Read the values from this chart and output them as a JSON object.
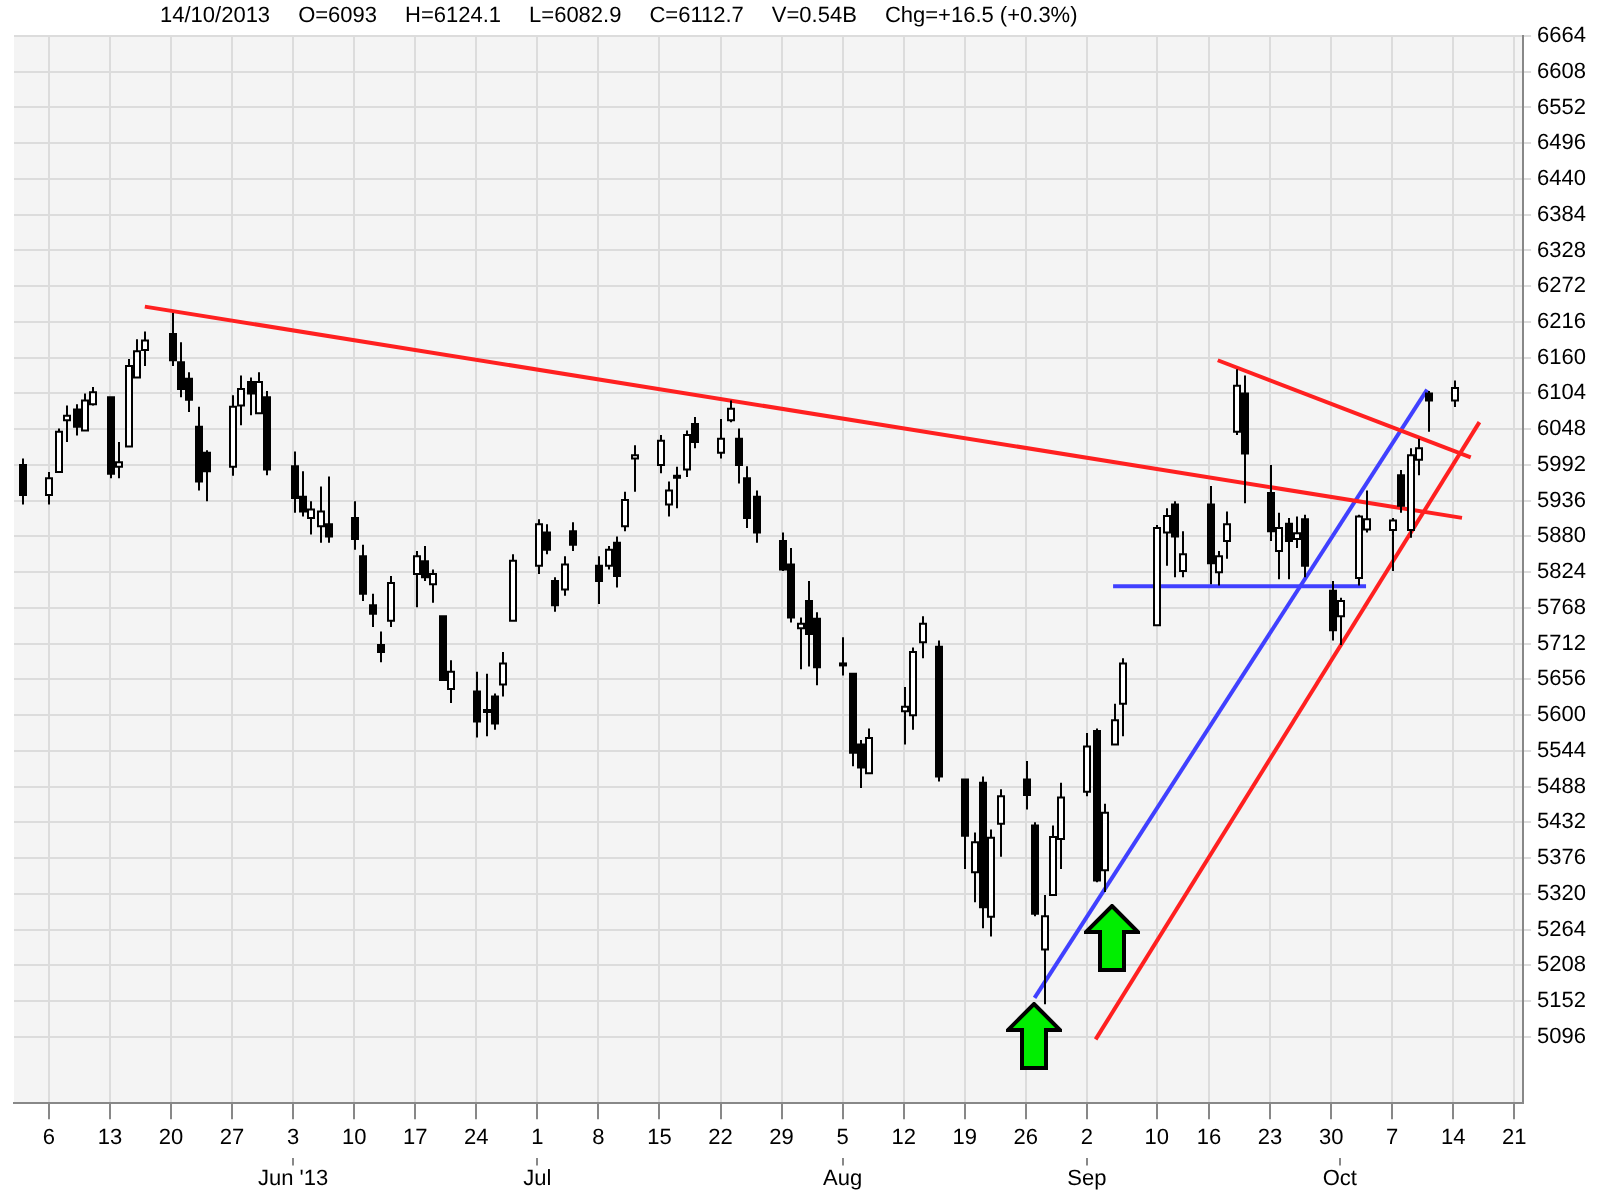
{
  "chart_data": {
    "type": "candlestick",
    "annotations": [
      "14/10/2013",
      "O=6093",
      "H=6124.1",
      "L=6082.9",
      "C=6112.7",
      "V=0.54B",
      "Chg=+16.5 (+0.3%)"
    ],
    "x2lim": [
      "2013-05-02",
      "2013-10-22"
    ],
    "x2ticks": [
      {
        "value": "2013-06-03",
        "label": "Jun '13"
      },
      {
        "value": "2013-07-01",
        "label": "Jul"
      },
      {
        "value": "2013-08-05",
        "label": "Aug"
      },
      {
        "value": "2013-09-02",
        "label": "Sep"
      },
      {
        "value": "2013-10-01",
        "label": "Oct"
      }
    ],
    "x": [
      "2013-05-03",
      "2013-05-06",
      "2013-05-07",
      "2013-05-08",
      "2013-05-09",
      "2013-05-10",
      "2013-05-11",
      "2013-05-13",
      "2013-05-14",
      "2013-05-15",
      "2013-05-16",
      "2013-05-17",
      "2013-05-20",
      "2013-05-21",
      "2013-05-22",
      "2013-05-23",
      "2013-05-24",
      "2013-05-27",
      "2013-05-28",
      "2013-05-29",
      "2013-05-30",
      "2013-05-31",
      "2013-06-03",
      "2013-06-04",
      "2013-06-05",
      "2013-06-06",
      "2013-06-07",
      "2013-06-10",
      "2013-06-11",
      "2013-06-12",
      "2013-06-13",
      "2013-06-14",
      "2013-06-17",
      "2013-06-18",
      "2013-06-19",
      "2013-06-20",
      "2013-06-21",
      "2013-06-24",
      "2013-06-25",
      "2013-06-26",
      "2013-06-27",
      "2013-06-28",
      "2013-07-01",
      "2013-07-02",
      "2013-07-03",
      "2013-07-04",
      "2013-07-05",
      "2013-07-08",
      "2013-07-09",
      "2013-07-10",
      "2013-07-11",
      "2013-07-12",
      "2013-07-15",
      "2013-07-16",
      "2013-07-17",
      "2013-07-18",
      "2013-07-19",
      "2013-07-22",
      "2013-07-23",
      "2013-07-24",
      "2013-07-25",
      "2013-07-26",
      "2013-07-29",
      "2013-07-30",
      "2013-07-31",
      "2013-08-01",
      "2013-08-02",
      "2013-08-05",
      "2013-08-06",
      "2013-08-07",
      "2013-08-08",
      "2013-08-12",
      "2013-08-13",
      "2013-08-14",
      "2013-08-16",
      "2013-08-19",
      "2013-08-20",
      "2013-08-21",
      "2013-08-22",
      "2013-08-23",
      "2013-08-26",
      "2013-08-27",
      "2013-08-28",
      "2013-08-29",
      "2013-08-30",
      "2013-09-02",
      "2013-09-03",
      "2013-09-04",
      "2013-09-05",
      "2013-09-06",
      "2013-09-10",
      "2013-09-11",
      "2013-09-12",
      "2013-09-13",
      "2013-09-16",
      "2013-09-17",
      "2013-09-18",
      "2013-09-19",
      "2013-09-20",
      "2013-09-23",
      "2013-09-24",
      "2013-09-25",
      "2013-09-26",
      "2013-09-27",
      "2013-09-30",
      "2013-10-01",
      "2013-10-03",
      "2013-10-04",
      "2013-10-07",
      "2013-10-08",
      "2013-10-09",
      "2013-10-10",
      "2013-10-11",
      "2013-10-14"
    ],
    "ohlc": [
      [
        5992,
        6002,
        5930,
        5945
      ],
      [
        5945,
        5981,
        5930,
        5971
      ],
      [
        5981,
        6049,
        5981,
        6044
      ],
      [
        6062,
        6085,
        6028,
        6069
      ],
      [
        6079,
        6087,
        6038,
        6052
      ],
      [
        6046,
        6104,
        6046,
        6093
      ],
      [
        6087,
        6114,
        6085,
        6106
      ],
      [
        6098,
        6098,
        5971,
        5978
      ],
      [
        5989,
        6028,
        5971,
        5996
      ],
      [
        6021,
        6158,
        6021,
        6147
      ],
      [
        6129,
        6189,
        6129,
        6170
      ],
      [
        6172,
        6201,
        6147,
        6187
      ],
      [
        6197,
        6230,
        6147,
        6156
      ],
      [
        6153,
        6184,
        6098,
        6111
      ],
      [
        6127,
        6137,
        6075,
        6094
      ],
      [
        6052,
        6083,
        5952,
        5966
      ],
      [
        6011,
        6015,
        5935,
        5982
      ],
      [
        5989,
        6101,
        5975,
        6083
      ],
      [
        6085,
        6132,
        6054,
        6111
      ],
      [
        6122,
        6129,
        6070,
        6104
      ],
      [
        6073,
        6137,
        6073,
        6122
      ],
      [
        6098,
        6108,
        5976,
        5985
      ],
      [
        5990,
        6013,
        5917,
        5940
      ],
      [
        5942,
        5982,
        5911,
        5919
      ],
      [
        5909,
        5935,
        5883,
        5922
      ],
      [
        5896,
        5958,
        5870,
        5919
      ],
      [
        5899,
        5974,
        5870,
        5880
      ],
      [
        5909,
        5935,
        5859,
        5876
      ],
      [
        5849,
        5867,
        5779,
        5790
      ],
      [
        5772,
        5790,
        5738,
        5759
      ],
      [
        5710,
        5731,
        5683,
        5699
      ],
      [
        5748,
        5818,
        5738,
        5807
      ],
      [
        5821,
        5857,
        5769,
        5849
      ],
      [
        5841,
        5865,
        5810,
        5816
      ],
      [
        5805,
        5828,
        5776,
        5821
      ],
      [
        5755,
        5755,
        5655,
        5655
      ],
      [
        5641,
        5686,
        5619,
        5668
      ],
      [
        5637,
        5668,
        5565,
        5590
      ],
      [
        5608,
        5665,
        5567,
        5606
      ],
      [
        5629,
        5634,
        5577,
        5587
      ],
      [
        5648,
        5699,
        5629,
        5681
      ],
      [
        5748,
        5852,
        5748,
        5842
      ],
      [
        5834,
        5907,
        5821,
        5899
      ],
      [
        5886,
        5899,
        5852,
        5859
      ],
      [
        5810,
        5816,
        5762,
        5772
      ],
      [
        5797,
        5849,
        5787,
        5836
      ],
      [
        5888,
        5902,
        5857,
        5867
      ],
      [
        5834,
        5849,
        5774,
        5810
      ],
      [
        5834,
        5865,
        5828,
        5859
      ],
      [
        5870,
        5880,
        5800,
        5818
      ],
      [
        5896,
        5950,
        5888,
        5937
      ],
      [
        6002,
        6023,
        5950,
        6007
      ],
      [
        5992,
        6039,
        5979,
        6030
      ],
      [
        5930,
        5966,
        5911,
        5952
      ],
      [
        5974,
        5989,
        5924,
        5975
      ],
      [
        5985,
        6046,
        5973,
        6039
      ],
      [
        6056,
        6067,
        6018,
        6028
      ],
      [
        6011,
        6064,
        6002,
        6033
      ],
      [
        6062,
        6093,
        6059,
        6080
      ],
      [
        6033,
        6049,
        5963,
        5992
      ],
      [
        5971,
        5990,
        5893,
        5909
      ],
      [
        5942,
        5952,
        5870,
        5886
      ],
      [
        5873,
        5886,
        5826,
        5828
      ],
      [
        5836,
        5862,
        5745,
        5753
      ],
      [
        5736,
        5753,
        5672,
        5743
      ],
      [
        5779,
        5810,
        5676,
        5727
      ],
      [
        5751,
        5761,
        5647,
        5675
      ],
      [
        5681,
        5722,
        5662,
        5680
      ],
      [
        5665,
        5665,
        5520,
        5541
      ],
      [
        5554,
        5561,
        5486,
        5518
      ],
      [
        5509,
        5579,
        5509,
        5564
      ],
      [
        5606,
        5644,
        5554,
        5613
      ],
      [
        5600,
        5706,
        5577,
        5699
      ],
      [
        5714,
        5755,
        5689,
        5743
      ],
      [
        5707,
        5717,
        5496,
        5504
      ],
      [
        5499,
        5499,
        5359,
        5411
      ],
      [
        5354,
        5416,
        5307,
        5401
      ],
      [
        5494,
        5504,
        5266,
        5299
      ],
      [
        5284,
        5421,
        5253,
        5408
      ],
      [
        5430,
        5484,
        5378,
        5473
      ],
      [
        5499,
        5528,
        5452,
        5475
      ],
      [
        5427,
        5432,
        5285,
        5289
      ],
      [
        5233,
        5318,
        5147,
        5285
      ],
      [
        5318,
        5427,
        5318,
        5409
      ],
      [
        5406,
        5494,
        5359,
        5471
      ],
      [
        5480,
        5572,
        5473,
        5551
      ],
      [
        5575,
        5579,
        5338,
        5341
      ],
      [
        5357,
        5461,
        5323,
        5447
      ],
      [
        5554,
        5618,
        5554,
        5592
      ],
      [
        5618,
        5689,
        5567,
        5681
      ],
      [
        5741,
        5898,
        5741,
        5893
      ],
      [
        5886,
        5924,
        5834,
        5912
      ],
      [
        5930,
        5935,
        5816,
        5880
      ],
      [
        5826,
        5888,
        5816,
        5852
      ],
      [
        5930,
        5959,
        5805,
        5838
      ],
      [
        5824,
        5857,
        5803,
        5849
      ],
      [
        5873,
        5919,
        5845,
        5899
      ],
      [
        6044,
        6142,
        6039,
        6116
      ],
      [
        6104,
        6132,
        5932,
        6010
      ],
      [
        5948,
        5992,
        5873,
        5888
      ],
      [
        5857,
        5917,
        5813,
        5893
      ],
      [
        5900,
        5909,
        5813,
        5873
      ],
      [
        5876,
        5911,
        5862,
        5885
      ],
      [
        5907,
        5914,
        5816,
        5834
      ],
      [
        5795,
        5810,
        5717,
        5733
      ],
      [
        5755,
        5784,
        5710,
        5779
      ],
      [
        5815,
        5914,
        5803,
        5911
      ],
      [
        5891,
        5952,
        5886,
        5907
      ],
      [
        5890,
        5909,
        5826,
        5905
      ],
      [
        5976,
        5984,
        5917,
        5928
      ],
      [
        5890,
        6018,
        5878,
        6007
      ],
      [
        6000,
        6033,
        5976,
        6018
      ],
      [
        6104,
        6108,
        6044,
        6093
      ],
      [
        6093,
        6124.1,
        6082.9,
        6112.7
      ]
    ],
    "series": [
      {
        "type": "line",
        "color": "#ff2020",
        "x": [
          "2013-05-17",
          "2013-10-15"
        ],
        "values": [
          6240,
          5909
        ]
      },
      {
        "type": "line",
        "color": "#ff2020",
        "x": [
          "2013-09-17",
          "2013-10-16"
        ],
        "values": [
          6156,
          6004
        ]
      },
      {
        "type": "line",
        "color": "#4040ff",
        "x": [
          "2013-08-27",
          "2013-10-11"
        ],
        "values": [
          5157,
          6110
        ]
      },
      {
        "type": "line",
        "color": "#4040ff",
        "x": [
          "2013-09-05",
          "2013-10-04"
        ],
        "values": [
          5802,
          5802
        ]
      },
      {
        "type": "line",
        "color": "#ff2020",
        "x": [
          "2013-09-03",
          "2013-10-17"
        ],
        "values": [
          5092,
          6059
        ]
      }
    ],
    "xlim": [
      "2013-05-02",
      "2013-10-22"
    ],
    "xticks": [
      {
        "value": "2013-05-06",
        "label": "6"
      },
      {
        "value": "2013-05-13",
        "label": "13"
      },
      {
        "value": "2013-05-20",
        "label": "20"
      },
      {
        "value": "2013-05-27",
        "label": "27"
      },
      {
        "value": "2013-06-03",
        "label": "3"
      },
      {
        "value": "2013-06-10",
        "label": "10"
      },
      {
        "value": "2013-06-17",
        "label": "17"
      },
      {
        "value": "2013-06-24",
        "label": "24"
      },
      {
        "value": "2013-07-01",
        "label": "1"
      },
      {
        "value": "2013-07-08",
        "label": "8"
      },
      {
        "value": "2013-07-15",
        "label": "15"
      },
      {
        "value": "2013-07-22",
        "label": "22"
      },
      {
        "value": "2013-07-29",
        "label": "29"
      },
      {
        "value": "2013-08-05",
        "label": "5"
      },
      {
        "value": "2013-08-12",
        "label": "12"
      },
      {
        "value": "2013-08-19",
        "label": "19"
      },
      {
        "value": "2013-08-26",
        "label": "26"
      },
      {
        "value": "2013-09-02",
        "label": "2"
      },
      {
        "value": "2013-09-10",
        "label": "10"
      },
      {
        "value": "2013-09-16",
        "label": "16"
      },
      {
        "value": "2013-09-23",
        "label": "23"
      },
      {
        "value": "2013-09-30",
        "label": "30"
      },
      {
        "value": "2013-10-07",
        "label": "7"
      },
      {
        "value": "2013-10-14",
        "label": "14"
      },
      {
        "value": "2013-10-21",
        "label": "21"
      }
    ],
    "ylim": [
      4992,
      6664
    ],
    "yticks": [
      5096,
      5152,
      5208,
      5264,
      5320,
      5376,
      5432,
      5488,
      5544,
      5600,
      5656,
      5712,
      5768,
      5824,
      5880,
      5936,
      5992,
      6048,
      6104,
      6160,
      6216,
      6272,
      6328,
      6384,
      6440,
      6496,
      6552,
      6608,
      6664
    ],
    "grid": true
  }
}
